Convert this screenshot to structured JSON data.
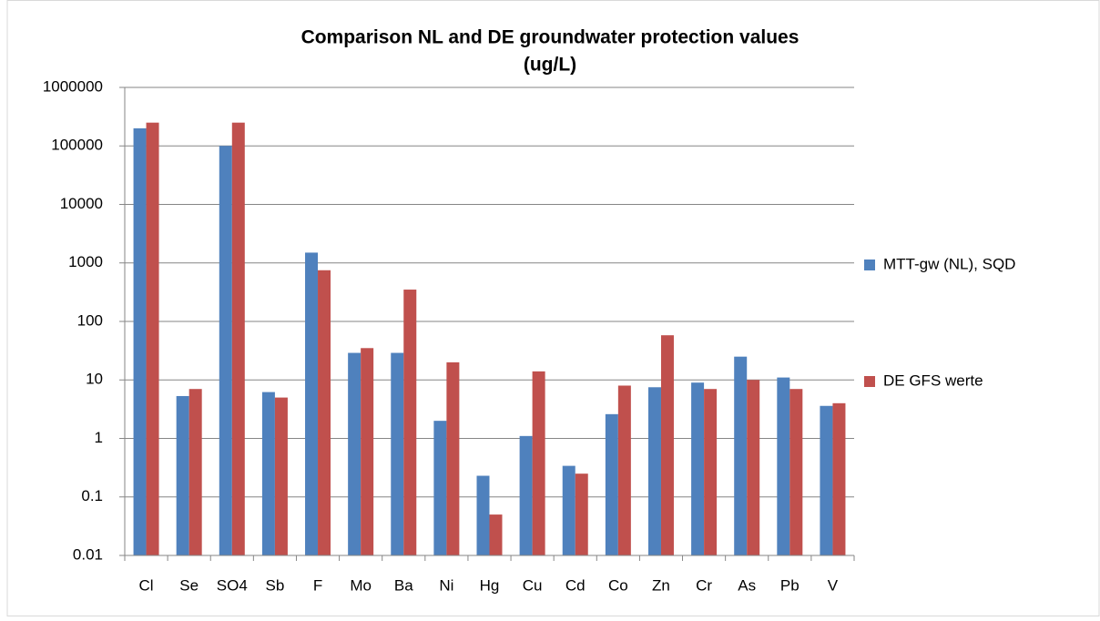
{
  "chart_data": {
    "type": "bar",
    "title": [
      "Comparison NL and DE groundwater protection values",
      "(ug/L)"
    ],
    "categories": [
      "Cl",
      "Se",
      "SO4",
      "Sb",
      "F",
      "Mo",
      "Ba",
      "Ni",
      "Hg",
      "Cu",
      "Cd",
      "Co",
      "Zn",
      "Cr",
      "As",
      "Pb",
      "V"
    ],
    "series": [
      {
        "name": "MTT-gw (NL), SQD",
        "color": "#4f81bd",
        "values": [
          200000,
          5.3,
          100000,
          6.2,
          1500,
          29,
          29,
          2,
          0.23,
          1.1,
          0.34,
          2.6,
          7.5,
          9,
          25,
          11,
          3.6
        ]
      },
      {
        "name": "DE GFS werte",
        "color": "#c0504d",
        "values": [
          250000,
          7,
          250000,
          5,
          750,
          35,
          350,
          20,
          0.05,
          14,
          0.25,
          8,
          58,
          7,
          10,
          7,
          4
        ]
      }
    ],
    "ylim": [
      0.01,
      1000000
    ],
    "yticks": [
      0.01,
      0.1,
      1,
      10,
      100,
      1000,
      10000,
      100000,
      1000000
    ],
    "log_scale": true,
    "grid": true,
    "legend": "right"
  }
}
